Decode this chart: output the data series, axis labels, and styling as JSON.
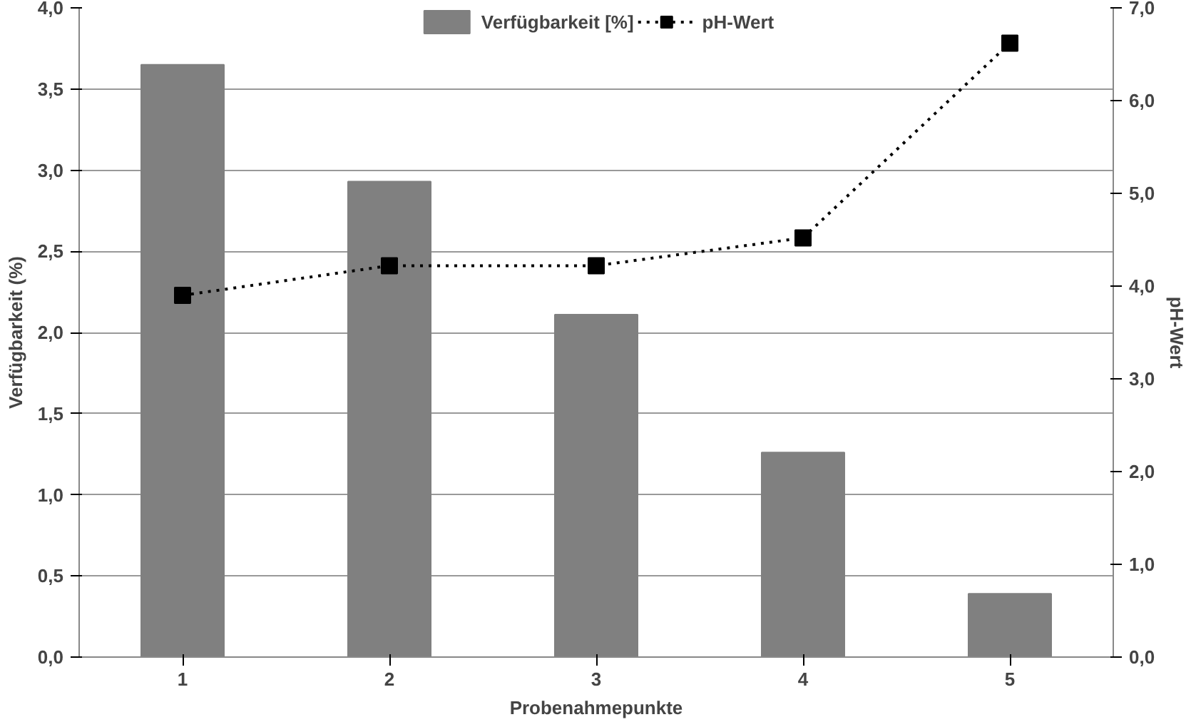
{
  "chart_data": {
    "type": "bar",
    "xlabel": "Probenahmepunkte",
    "ylabel": "Verfügbarkeit (%)",
    "y2label": "pH-Wert",
    "categories": [
      "1",
      "2",
      "3",
      "4",
      "5"
    ],
    "series": [
      {
        "name": "Verfügbarkeit [%]",
        "color": "#808080",
        "values": [
          3.65,
          2.93,
          2.11,
          1.26,
          0.39
        ]
      },
      {
        "name": "pH-Wert",
        "type": "line",
        "axis": "y2",
        "color": "#000000",
        "marker": "square",
        "line_style": "dotted",
        "values": [
          3.9,
          4.22,
          4.22,
          4.52,
          6.62
        ]
      }
    ],
    "ylim": [
      0,
      4
    ],
    "yticks": [
      {
        "value": 0,
        "label": "0,0"
      },
      {
        "value": 0.5,
        "label": "0,5"
      },
      {
        "value": 1,
        "label": "1,0"
      },
      {
        "value": 1.5,
        "label": "1,5"
      },
      {
        "value": 2,
        "label": "2,0"
      },
      {
        "value": 2.5,
        "label": "2,5"
      },
      {
        "value": 3,
        "label": "3,0"
      },
      {
        "value": 3.5,
        "label": "3,5"
      },
      {
        "value": 4,
        "label": "4,0"
      }
    ],
    "y2lim": [
      0,
      7
    ],
    "y2ticks": [
      {
        "value": 0,
        "label": "0,0"
      },
      {
        "value": 1,
        "label": "1,0"
      },
      {
        "value": 2,
        "label": "2,0"
      },
      {
        "value": 3,
        "label": "3,0"
      },
      {
        "value": 4,
        "label": "4,0"
      },
      {
        "value": 5,
        "label": "5,0"
      },
      {
        "value": 6,
        "label": "6,0"
      },
      {
        "value": 7,
        "label": "7,0"
      }
    ],
    "grid": "y",
    "legend": "top"
  }
}
